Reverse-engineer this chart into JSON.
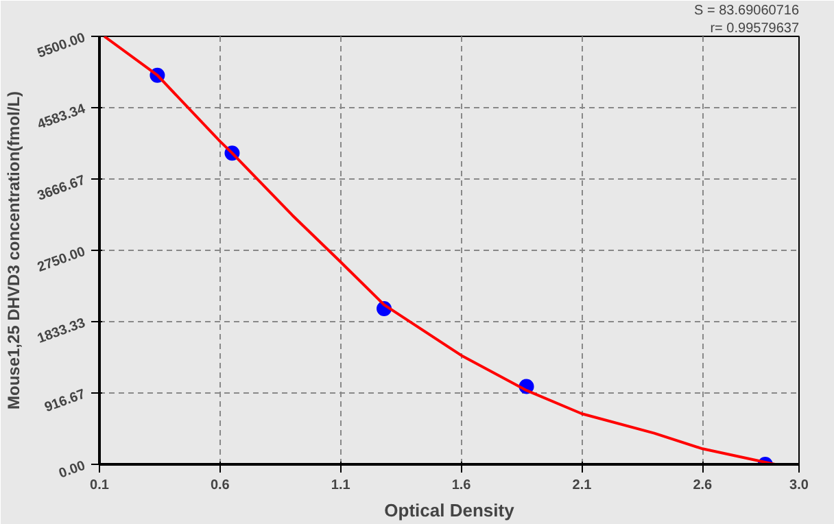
{
  "chart_data": {
    "type": "scatter",
    "xlabel": "Optical Density",
    "ylabel": "Mouse1,25 DHVD3 concentration(fmol/L)",
    "annotations": [
      "S = 83.69060716",
      "r= 0.99579637"
    ],
    "series": [
      {
        "color": "#0000ff",
        "marker": "circle",
        "x": [
          0.34,
          0.65,
          1.28,
          1.87,
          2.86
        ],
        "values": [
          5000,
          4000,
          2000,
          1000,
          0
        ]
      },
      {
        "type": "line",
        "color": "#ff0000",
        "marker": "none",
        "x": [
          0.12,
          0.34,
          0.6,
          0.65,
          0.9,
          1.1,
          1.28,
          1.6,
          1.87,
          2.1,
          2.4,
          2.6,
          2.9
        ],
        "values": [
          5500,
          5000,
          4150,
          4000,
          3200,
          2600,
          2050,
          1400,
          950,
          650,
          400,
          200,
          0
        ]
      }
    ],
    "xlim": [
      0.1,
      3.0
    ],
    "xticks": [
      0.1,
      0.6,
      1.1,
      1.6,
      2.1,
      2.6,
      {
        "value": 3.0,
        "label": "3.0"
      }
    ],
    "ylim": [
      0,
      5500
    ],
    "yticks": [
      {
        "value": 0,
        "label": "0.00"
      },
      {
        "value": 916.67,
        "label": "916.67"
      },
      {
        "value": 1833.33,
        "label": "1833.33"
      },
      {
        "value": 2750,
        "label": "2750.00"
      },
      {
        "value": 3666.67,
        "label": "3666.67"
      },
      {
        "value": 4583.34,
        "label": "4583.34"
      },
      {
        "value": 5500,
        "label": "5500.00"
      }
    ],
    "grid": true
  }
}
